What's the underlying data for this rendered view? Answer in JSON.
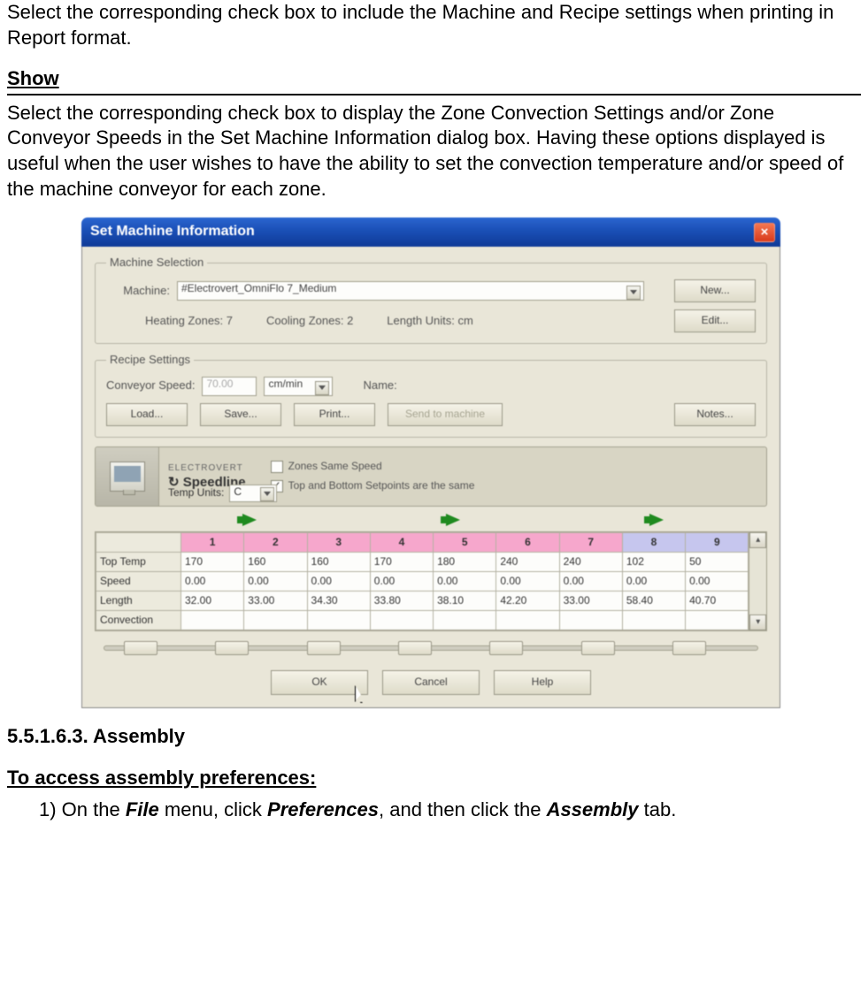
{
  "intro_para": "Select the corresponding check box to include the Machine and Recipe settings when printing in Report format.",
  "show_heading": "Show",
  "show_para": "Select the corresponding check box to display the Zone Convection Settings and/or Zone Conveyor Speeds in the Set Machine Information dialog box. Having these options displayed is useful when the user wishes to have the ability to set the convection temperature and/or speed of the machine conveyor for each zone.",
  "dialog": {
    "title": "Set Machine Information",
    "close_glyph": "×",
    "machine_selection": {
      "legend": "Machine Selection",
      "machine_label": "Machine:",
      "machine_value": "#Electrovert_OmniFlo 7_Medium",
      "new_btn": "New...",
      "heating_label": "Heating Zones: 7",
      "cooling_label": "Cooling Zones: 2",
      "length_units_label": "Length Units: cm",
      "edit_btn": "Edit..."
    },
    "recipe": {
      "legend": "Recipe Settings",
      "conveyor_speed_label": "Conveyor Speed:",
      "conveyor_speed_value": "70.00",
      "speed_unit": "cm/min",
      "name_label": "Name:",
      "load_btn": "Load...",
      "save_btn": "Save...",
      "print_btn": "Print...",
      "send_btn": "Send to machine",
      "notes_btn": "Notes..."
    },
    "brand": {
      "sub": "ELECTROVERT",
      "name": "Speedline",
      "temp_units_label": "Temp Units:",
      "temp_unit": "C",
      "zones_same_speed_label": "Zones Same Speed",
      "zones_same_speed_checked": false,
      "top_bottom_same_label": "Top and Bottom Setpoints are the same",
      "top_bottom_same_checked": true
    },
    "grid": {
      "columns": [
        "1",
        "2",
        "3",
        "4",
        "5",
        "6",
        "7",
        "8",
        "9"
      ],
      "hot_count": 7,
      "rows": [
        {
          "label": "Top Temp",
          "cells": [
            "170",
            "160",
            "160",
            "170",
            "180",
            "240",
            "240",
            "102",
            "50"
          ]
        },
        {
          "label": "Speed",
          "cells": [
            "0.00",
            "0.00",
            "0.00",
            "0.00",
            "0.00",
            "0.00",
            "0.00",
            "0.00",
            "0.00"
          ]
        },
        {
          "label": "Length",
          "cells": [
            "32.00",
            "33.00",
            "34.30",
            "33.80",
            "38.10",
            "42.20",
            "33.00",
            "58.40",
            "40.70"
          ]
        },
        {
          "label": "Convection",
          "cells": [
            "",
            "",
            "",
            "",
            "",
            "",
            "",
            "",
            ""
          ]
        }
      ],
      "scroll_up": "▴",
      "scroll_down": "▾",
      "slider_positions": [
        0.03,
        0.17,
        0.31,
        0.45,
        0.59,
        0.73,
        0.87
      ]
    },
    "footer": {
      "ok": "OK",
      "cancel": "Cancel",
      "help": "Help"
    }
  },
  "section_num": "5.5.1.6.3. Assembly",
  "access_heading": "To access assembly preferences:",
  "step1_pre": "1) On the ",
  "step1_file": "File",
  "step1_mid1": " menu, click ",
  "step1_pref": "Preferences",
  "step1_mid2": ", and then click the ",
  "step1_asm": "Assembly",
  "step1_end": " tab."
}
